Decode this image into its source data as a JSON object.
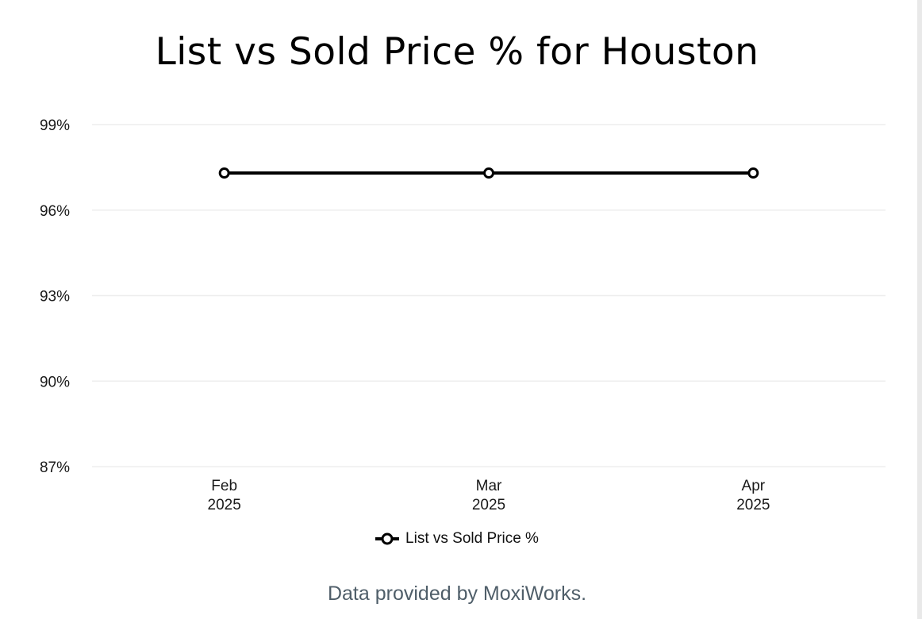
{
  "chart_data": {
    "type": "line",
    "title": "List vs Sold Price % for Houston",
    "categories": [
      [
        "Feb",
        "2025"
      ],
      [
        "Mar",
        "2025"
      ],
      [
        "Apr",
        "2025"
      ]
    ],
    "series": [
      {
        "name": "List vs Sold Price %",
        "values": [
          97.3,
          97.3,
          97.3
        ],
        "color": "#000000"
      }
    ],
    "y_ticks": [
      87,
      90,
      93,
      96,
      99
    ],
    "y_tick_labels": [
      "87%",
      "90%",
      "93%",
      "96%",
      "99%"
    ],
    "ylim": [
      87,
      99
    ],
    "xlabel": "",
    "ylabel": "",
    "grid": true,
    "legend_position": "bottom-center",
    "gridline_color": "#eeeeee"
  },
  "footer": {
    "credit": "Data provided by MoxiWorks."
  }
}
